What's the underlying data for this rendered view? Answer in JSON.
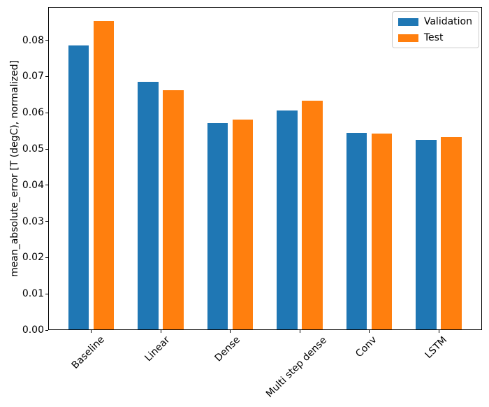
{
  "figure": {
    "background": "#ffffff",
    "spine_color": "#000000"
  },
  "chart_data": {
    "type": "bar",
    "title": "",
    "xlabel": "",
    "ylabel": "mean_absolute_error [T (degC), normalized]",
    "categories": [
      "Baseline",
      "Linear",
      "Dense",
      "Multi step dense",
      "Conv",
      "LSTM"
    ],
    "series": [
      {
        "name": "Validation",
        "color": "#1f77b4",
        "values": [
          0.0785,
          0.0686,
          0.0571,
          0.0606,
          0.0545,
          0.0525
        ]
      },
      {
        "name": "Test",
        "color": "#ff7f0e",
        "values": [
          0.0853,
          0.0663,
          0.0582,
          0.0633,
          0.0542,
          0.0532
        ]
      }
    ],
    "ylim": [
      0,
      0.0892
    ],
    "yticks": [
      0,
      0.01,
      0.02,
      0.03,
      0.04,
      0.05,
      0.06,
      0.07,
      0.08
    ],
    "ytick_labels": [
      "0.00",
      "0.01",
      "0.02",
      "0.03",
      "0.04",
      "0.05",
      "0.06",
      "0.07",
      "0.08"
    ],
    "xtick_rotation": 45,
    "grid": false,
    "legend": {
      "position": "upper right",
      "labels": [
        "Validation",
        "Test"
      ]
    }
  }
}
